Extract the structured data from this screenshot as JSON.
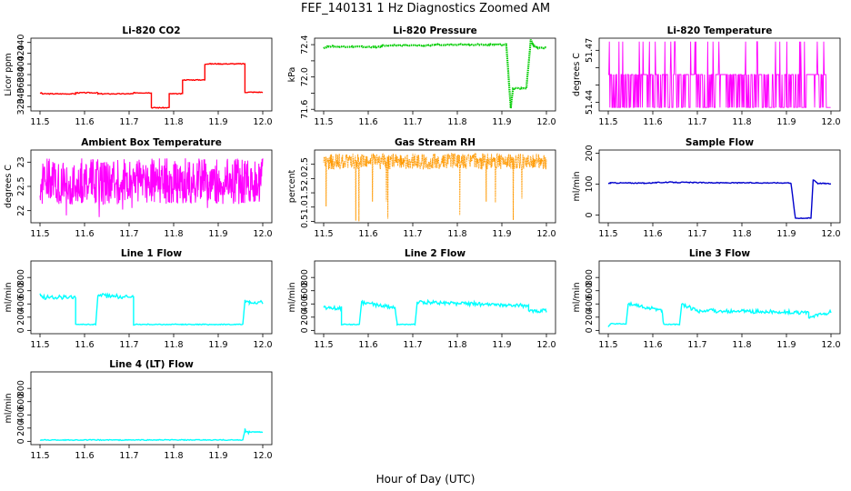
{
  "figure": {
    "title": "FEF_140131  1 Hz Diagnostics Zoomed AM",
    "xlabel": "Hour of Day (UTC)"
  },
  "chart_data": [
    {
      "type": "line",
      "title": "Li-820 CO2",
      "ylabel": "Licor ppm",
      "color": "#ff0000",
      "xlim": [
        11.5,
        12.0
      ],
      "ylim": [
        312,
        448
      ],
      "xticks": [
        11.5,
        11.6,
        11.7,
        11.8,
        11.9,
        12.0
      ],
      "yticks": [
        320,
        340,
        360,
        380,
        400,
        420,
        440
      ],
      "series": [
        {
          "x": [
            11.5,
            11.505,
            11.505,
            11.58,
            11.58,
            11.63,
            11.63,
            11.71,
            11.71,
            11.75,
            11.75,
            11.79,
            11.79,
            11.82,
            11.82,
            11.87,
            11.87,
            11.96,
            11.96,
            12.0
          ],
          "y": [
            346,
            345,
            344,
            344,
            346,
            346,
            344,
            344,
            346,
            346,
            318,
            318,
            344,
            344,
            370,
            370,
            400,
            400,
            347,
            347
          ]
        }
      ]
    },
    {
      "type": "scatter",
      "title": "Li-820 Pressure",
      "ylabel": "kPa",
      "color": "#00cc00",
      "xlim": [
        11.5,
        12.0
      ],
      "ylim": [
        71.58,
        72.48
      ],
      "xticks": [
        11.5,
        11.6,
        11.7,
        11.8,
        11.9,
        12.0
      ],
      "yticks": [
        71.6,
        71.8,
        72.0,
        72.2,
        72.4
      ],
      "yticklabels_shown": [
        "71.6",
        "72.0",
        "72.4"
      ],
      "series": [
        {
          "x": [
            11.5,
            11.51,
            11.63,
            11.63,
            11.75,
            11.75,
            11.91,
            11.92,
            11.925,
            11.93,
            11.955,
            11.965,
            11.97,
            11.98,
            12.0
          ],
          "y": [
            72.36,
            72.38,
            72.37,
            72.39,
            72.39,
            72.4,
            72.4,
            71.62,
            71.85,
            71.86,
            71.86,
            72.46,
            72.4,
            72.36,
            72.36
          ]
        }
      ]
    },
    {
      "type": "line",
      "title": "Li-820 Temperature",
      "ylabel": "degrees C",
      "color": "#ff00ff",
      "xlim": [
        11.5,
        12.0
      ],
      "ylim": [
        51.435,
        51.477
      ],
      "xticks": [
        11.5,
        11.6,
        11.7,
        11.8,
        11.9,
        12.0
      ],
      "yticks": [
        51.44,
        51.45,
        51.46,
        51.47
      ],
      "yticklabels_shown": [
        "51.44",
        "51.47"
      ],
      "levels": [
        51.437,
        51.456,
        51.475
      ]
    },
    {
      "type": "line",
      "title": "Ambient Box Temperature",
      "ylabel": "degrees C",
      "color": "#ff00ff",
      "xlim": [
        11.5,
        12.0
      ],
      "ylim": [
        21.75,
        23.25
      ],
      "xticks": [
        11.5,
        11.6,
        11.7,
        11.8,
        11.9,
        12.0
      ],
      "yticks": [
        22.0,
        22.5,
        23.0
      ],
      "mean": 22.6,
      "range": [
        21.85,
        23.2
      ]
    },
    {
      "type": "scatter",
      "title": "Gas Stream RH",
      "ylabel": "percent",
      "color": "#ff9900",
      "xlim": [
        11.5,
        12.0
      ],
      "ylim": [
        0.45,
        3.0
      ],
      "xticks": [
        11.5,
        11.6,
        11.7,
        11.8,
        11.9,
        12.0
      ],
      "yticks": [
        0.5,
        1.0,
        1.5,
        2.0,
        2.5
      ],
      "mean": 2.6,
      "range": [
        0.5,
        2.95
      ]
    },
    {
      "type": "line",
      "title": "Sample Flow",
      "ylabel": "ml/min",
      "color": "#0000cc",
      "xlim": [
        11.5,
        12.0
      ],
      "ylim": [
        -25,
        210
      ],
      "xticks": [
        11.5,
        11.6,
        11.7,
        11.8,
        11.9,
        12.0
      ],
      "yticks": [
        0,
        100,
        200
      ],
      "series": [
        {
          "x": [
            11.5,
            11.505,
            11.58,
            11.63,
            11.75,
            11.91,
            11.92,
            11.955,
            11.96,
            11.97,
            12.0
          ],
          "y": [
            102,
            104,
            103,
            106,
            104,
            104,
            -10,
            -10,
            115,
            103,
            101
          ]
        }
      ]
    },
    {
      "type": "line",
      "title": "Line 1 Flow",
      "ylabel": "ml/min",
      "color": "#00ffff",
      "xlim": [
        11.5,
        12.0
      ],
      "ylim": [
        -50,
        1050
      ],
      "xticks": [
        11.5,
        11.6,
        11.7,
        11.8,
        11.9,
        12.0
      ],
      "yticks": [
        0,
        200,
        400,
        600,
        800
      ],
      "series": [
        {
          "x": [
            11.5,
            11.505,
            11.58,
            11.58,
            11.625,
            11.63,
            11.71,
            11.71,
            11.955,
            11.96,
            11.97,
            12.0
          ],
          "y": [
            560,
            500,
            500,
            90,
            90,
            530,
            500,
            90,
            90,
            440,
            430,
            430
          ]
        }
      ]
    },
    {
      "type": "line",
      "title": "Line 2 Flow",
      "ylabel": "ml/min",
      "color": "#00ffff",
      "xlim": [
        11.5,
        12.0
      ],
      "ylim": [
        -50,
        1050
      ],
      "xticks": [
        11.5,
        11.6,
        11.7,
        11.8,
        11.9,
        12.0
      ],
      "yticks": [
        0,
        200,
        400,
        600,
        800
      ],
      "series": [
        {
          "x": [
            11.5,
            11.54,
            11.54,
            11.58,
            11.585,
            11.66,
            11.665,
            11.705,
            11.71,
            11.96,
            11.96,
            12.0
          ],
          "y": [
            340,
            340,
            90,
            90,
            420,
            340,
            90,
            90,
            430,
            370,
            280,
            300
          ]
        }
      ]
    },
    {
      "type": "line",
      "title": "Line 3 Flow",
      "ylabel": "ml/min",
      "color": "#00ffff",
      "xlim": [
        11.5,
        12.0
      ],
      "ylim": [
        -50,
        1050
      ],
      "xticks": [
        11.5,
        11.6,
        11.7,
        11.8,
        11.9,
        12.0
      ],
      "yticks": [
        0,
        200,
        400,
        600,
        800
      ],
      "series": [
        {
          "x": [
            11.5,
            11.505,
            11.54,
            11.545,
            11.62,
            11.625,
            11.66,
            11.665,
            11.7,
            11.95,
            11.95,
            12.0
          ],
          "y": [
            50,
            100,
            100,
            400,
            300,
            90,
            90,
            390,
            300,
            270,
            200,
            280
          ]
        }
      ]
    },
    {
      "type": "line",
      "title": "Line 4 (LT) Flow",
      "ylabel": "ml/min",
      "color": "#00ffff",
      "xlim": [
        11.5,
        12.0
      ],
      "ylim": [
        -50,
        1050
      ],
      "xticks": [
        11.5,
        11.6,
        11.7,
        11.8,
        11.9,
        12.0
      ],
      "yticks": [
        0,
        200,
        400,
        600,
        800
      ],
      "series": [
        {
          "x": [
            11.5,
            11.955,
            11.96,
            11.97,
            12.0
          ],
          "y": [
            20,
            20,
            170,
            140,
            140
          ]
        }
      ]
    }
  ]
}
